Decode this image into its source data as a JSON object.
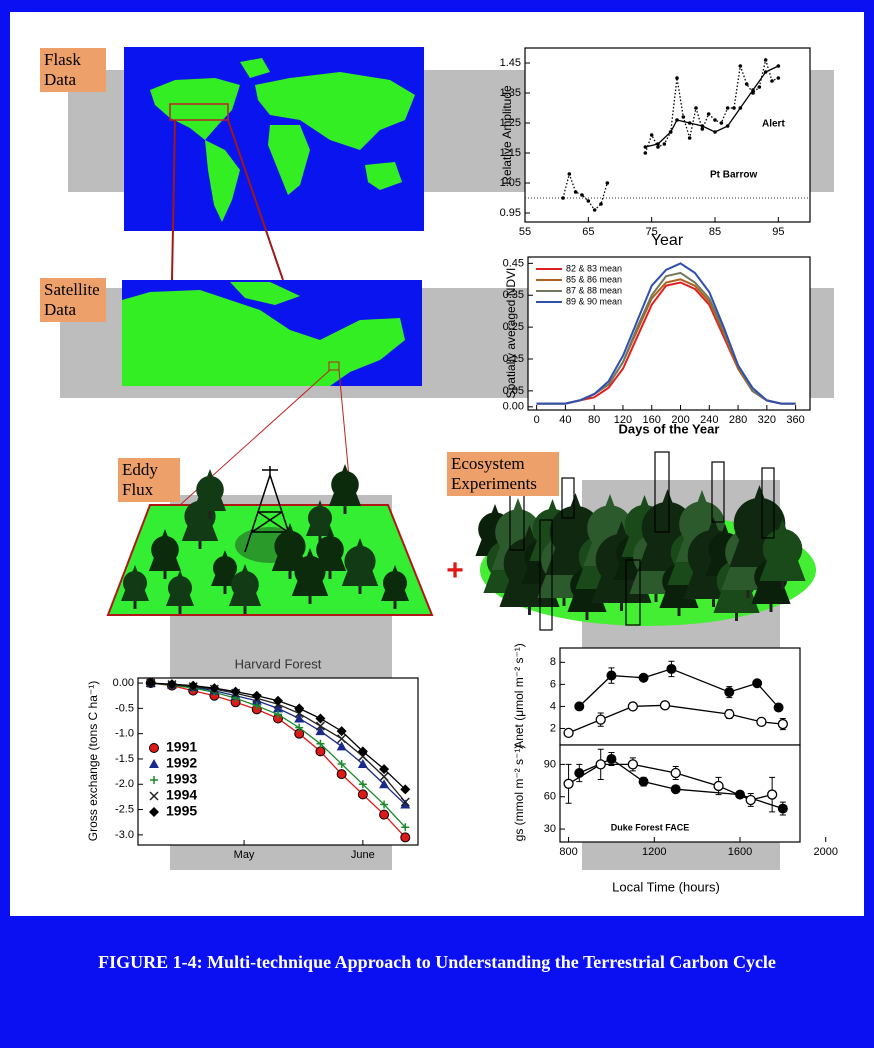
{
  "labels": {
    "flask": "Flask Data",
    "satellite": "Satellite Data",
    "eddy": "Eddy Flux",
    "ecosystem": "Ecosystem Experiments",
    "plus": "+"
  },
  "caption": "FIGURE 1-4:  Multi-technique Approach to Understanding the Terrestrial Carbon Cycle",
  "chart_data": [
    {
      "type": "line",
      "xlabel": "Year",
      "ylabel": "Relative Amplitude",
      "xlim": [
        55,
        100
      ],
      "ylim": [
        0.92,
        1.5
      ],
      "xticks": [
        55,
        65,
        75,
        85,
        95
      ],
      "yticks": [
        0.95,
        1.05,
        1.15,
        1.25,
        1.35,
        1.45
      ],
      "reference_line": 1.0,
      "series": [
        {
          "name": "Pt Barrow",
          "color": "#000000",
          "dash": "dotted",
          "marker": "dot",
          "x": [
            61,
            62,
            63,
            64,
            65,
            66,
            67,
            68,
            70,
            74,
            75,
            76,
            77,
            78,
            79,
            80,
            81,
            82,
            83,
            84,
            85,
            86,
            87,
            88,
            89,
            90,
            91,
            92,
            93,
            94,
            95
          ],
          "values": [
            1.0,
            1.08,
            1.02,
            1.01,
            0.99,
            0.96,
            0.98,
            1.05,
            null,
            1.15,
            1.21,
            1.17,
            1.18,
            1.22,
            1.4,
            1.27,
            1.2,
            1.3,
            1.23,
            1.28,
            1.26,
            1.25,
            1.3,
            1.3,
            1.44,
            1.38,
            1.35,
            1.37,
            1.46,
            1.39,
            1.4
          ]
        },
        {
          "name": "Alert",
          "color": "#000000",
          "dash": "solid",
          "marker": "dot",
          "x": [
            74,
            76,
            78,
            79,
            81,
            83,
            85,
            87,
            89,
            91,
            93,
            95
          ],
          "values": [
            1.17,
            1.18,
            1.22,
            1.26,
            1.25,
            1.24,
            1.22,
            1.24,
            1.3,
            1.36,
            1.42,
            1.44
          ]
        }
      ]
    },
    {
      "type": "line",
      "xlabel": "Days of the Year",
      "ylabel": "Spatially averaged NDVI",
      "xlim": [
        -12,
        380
      ],
      "ylim": [
        -0.01,
        0.47
      ],
      "xticks": [
        0,
        40,
        80,
        120,
        160,
        200,
        240,
        280,
        320,
        360
      ],
      "yticks": [
        {
          "value": 0,
          "label": "0.00"
        },
        0.05,
        0.15,
        0.25,
        0.35,
        0.45
      ],
      "legend": "upper left",
      "x": [
        0,
        20,
        40,
        60,
        80,
        100,
        120,
        140,
        160,
        180,
        200,
        220,
        240,
        260,
        280,
        300,
        320,
        340,
        360
      ],
      "series": [
        {
          "name": "82 & 83 mean",
          "color": "#e02020",
          "values": [
            0.01,
            0.01,
            0.01,
            0.02,
            0.03,
            0.06,
            0.12,
            0.22,
            0.32,
            0.38,
            0.39,
            0.37,
            0.32,
            0.22,
            0.12,
            0.05,
            0.02,
            0.01,
            0.01
          ]
        },
        {
          "name": "85 & 86 mean",
          "color": "#b0601e",
          "values": [
            0.01,
            0.01,
            0.01,
            0.02,
            0.04,
            0.07,
            0.14,
            0.24,
            0.34,
            0.39,
            0.4,
            0.38,
            0.33,
            0.23,
            0.12,
            0.05,
            0.02,
            0.01,
            0.01
          ]
        },
        {
          "name": "87 & 88 mean",
          "color": "#6f7a5a",
          "values": [
            0.01,
            0.01,
            0.01,
            0.02,
            0.04,
            0.07,
            0.14,
            0.25,
            0.35,
            0.41,
            0.42,
            0.39,
            0.34,
            0.24,
            0.13,
            0.05,
            0.02,
            0.01,
            0.01
          ]
        },
        {
          "name": "89 & 90 mean",
          "color": "#3050b0",
          "values": [
            0.01,
            0.01,
            0.01,
            0.02,
            0.04,
            0.08,
            0.16,
            0.27,
            0.38,
            0.43,
            0.45,
            0.42,
            0.36,
            0.25,
            0.13,
            0.06,
            0.02,
            0.01,
            0.01
          ]
        }
      ]
    },
    {
      "type": "line",
      "title": "Harvard Forest",
      "ylabel": "Gross exchange (tons C ha⁻¹)",
      "xlim": [
        -3,
        63
      ],
      "ylim": [
        -3.2,
        0.1
      ],
      "xticks": [
        {
          "value": 22,
          "label": "May"
        },
        {
          "value": 50,
          "label": "June"
        }
      ],
      "yticks": [
        {
          "value": 0,
          "label": "0.00"
        },
        -0.5,
        {
          "value": -1,
          "label": "-1.0"
        },
        -1.5,
        {
          "value": -2,
          "label": "-2.0"
        },
        -2.5,
        {
          "value": -3,
          "label": "-3.0"
        }
      ],
      "legend": "lower left",
      "x": [
        0,
        5,
        10,
        15,
        20,
        25,
        30,
        35,
        40,
        45,
        50,
        55,
        60
      ],
      "series": [
        {
          "name": "1991",
          "color": "#e01818",
          "marker": "circle-filled",
          "values": [
            0,
            -0.05,
            -0.15,
            -0.25,
            -0.38,
            -0.52,
            -0.7,
            -1.0,
            -1.35,
            -1.8,
            -2.2,
            -2.6,
            -3.05
          ]
        },
        {
          "name": "1992",
          "color": "#1a2a8a",
          "marker": "triangle",
          "values": [
            0,
            -0.03,
            -0.08,
            -0.15,
            -0.25,
            -0.35,
            -0.5,
            -0.7,
            -0.95,
            -1.25,
            -1.6,
            -2.0,
            -2.4
          ]
        },
        {
          "name": "1993",
          "color": "#1a8a2a",
          "marker": "plus",
          "values": [
            0,
            -0.04,
            -0.1,
            -0.18,
            -0.3,
            -0.45,
            -0.62,
            -0.88,
            -1.2,
            -1.6,
            -2.0,
            -2.4,
            -2.85
          ]
        },
        {
          "name": "1994",
          "color": "#222222",
          "marker": "x",
          "values": [
            0,
            -0.03,
            -0.07,
            -0.12,
            -0.2,
            -0.3,
            -0.42,
            -0.6,
            -0.85,
            -1.1,
            -1.45,
            -1.85,
            -2.35
          ]
        },
        {
          "name": "1995",
          "color": "#000000",
          "marker": "diamond",
          "values": [
            0,
            -0.02,
            -0.05,
            -0.1,
            -0.17,
            -0.25,
            -0.35,
            -0.5,
            -0.7,
            -0.95,
            -1.35,
            -1.7,
            -2.1
          ]
        }
      ]
    },
    {
      "type": "line",
      "ylabel": "Anet (μmol m⁻² s⁻¹)",
      "xlim": [
        760,
        1880
      ],
      "ylim": [
        0.5,
        9.3
      ],
      "yticks": [
        2,
        4,
        6,
        8
      ],
      "series": [
        {
          "color": "#000000",
          "marker": "circle-filled",
          "x": [
            850,
            1000,
            1150,
            1280,
            1550,
            1680,
            1780
          ],
          "values": [
            4.0,
            6.8,
            6.6,
            7.4,
            5.3,
            6.1,
            3.9
          ],
          "errors": [
            0.3,
            0.7,
            0.3,
            0.7,
            0.5,
            0.3,
            0.3
          ]
        },
        {
          "color": "#000000",
          "marker": "circle-open",
          "x": [
            800,
            950,
            1100,
            1250,
            1550,
            1700,
            1800
          ],
          "values": [
            1.6,
            2.8,
            4.0,
            4.1,
            3.3,
            2.6,
            2.4
          ],
          "errors": [
            0.3,
            0.6,
            0.3,
            0.3,
            0.4,
            0.3,
            0.5
          ]
        }
      ]
    },
    {
      "type": "line",
      "xlabel": "Local Time (hours)",
      "ylabel": "gs (mmol m⁻² s⁻¹)",
      "annotation": "Duke Forest FACE",
      "xlim": [
        760,
        1880
      ],
      "ylim": [
        18,
        108
      ],
      "xticks": [
        800,
        1200,
        1600,
        2000
      ],
      "yticks": [
        30,
        60,
        90
      ],
      "series": [
        {
          "color": "#000000",
          "marker": "circle-filled",
          "x": [
            850,
            1000,
            1150,
            1300,
            1600,
            1800
          ],
          "values": [
            82,
            95,
            74,
            67,
            62,
            49
          ],
          "errors": [
            8,
            6,
            4,
            3,
            3,
            6
          ]
        },
        {
          "color": "#000000",
          "marker": "circle-open",
          "x": [
            800,
            950,
            1100,
            1300,
            1500,
            1650,
            1750
          ],
          "values": [
            72,
            90,
            90,
            82,
            70,
            57,
            62
          ],
          "errors": [
            18,
            14,
            6,
            6,
            8,
            6,
            16
          ]
        }
      ]
    }
  ]
}
